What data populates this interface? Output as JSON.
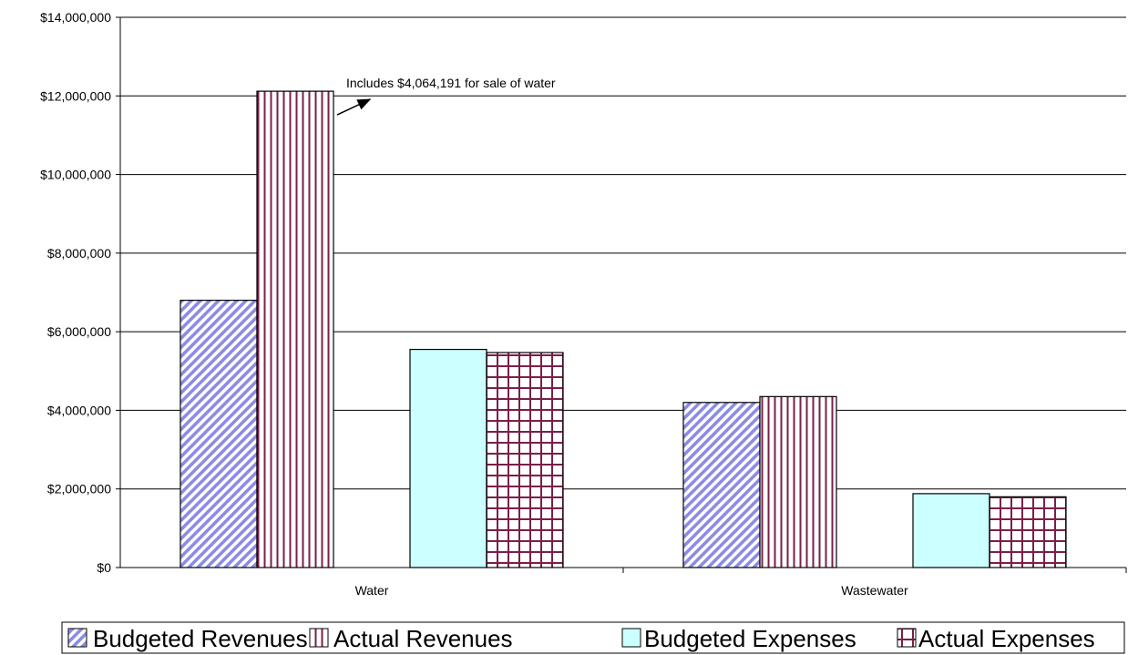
{
  "chart_data": {
    "type": "bar",
    "categories": [
      "Water",
      "Wastewater"
    ],
    "series": [
      {
        "name": "Budgeted Revenues",
        "values": [
          6800000,
          4200000
        ],
        "pattern": "diagonal",
        "color": "#8c8ce6"
      },
      {
        "name": "Actual Revenues",
        "values": [
          12120000,
          4350000
        ],
        "pattern": "vertical",
        "color": "#7a1f4a"
      },
      {
        "name": "",
        "values": [
          0,
          0
        ],
        "pattern": "none",
        "color": "#ffffff"
      },
      {
        "name": "Budgeted Expenses",
        "values": [
          5550000,
          1880000
        ],
        "pattern": "solid",
        "color": "#ccffff"
      },
      {
        "name": "Actual Expenses",
        "values": [
          5470000,
          1800000
        ],
        "pattern": "grid",
        "color": "#7a1f4a"
      }
    ],
    "ylim": [
      0,
      14000000
    ],
    "yticks": [
      0,
      2000000,
      4000000,
      6000000,
      8000000,
      10000000,
      12000000,
      14000000
    ],
    "ytick_labels": [
      "$0",
      "$2,000,000",
      "$4,000,000",
      "$6,000,000",
      "$8,000,000",
      "$10,000,000",
      "$12,000,000",
      "$14,000,000"
    ],
    "grid": true,
    "legend_position": "bottom",
    "annotation": {
      "text": "Includes $4,064,191 for sale of water",
      "category": "Water",
      "series": "Actual Revenues"
    },
    "title": "",
    "xlabel": "",
    "ylabel": ""
  }
}
